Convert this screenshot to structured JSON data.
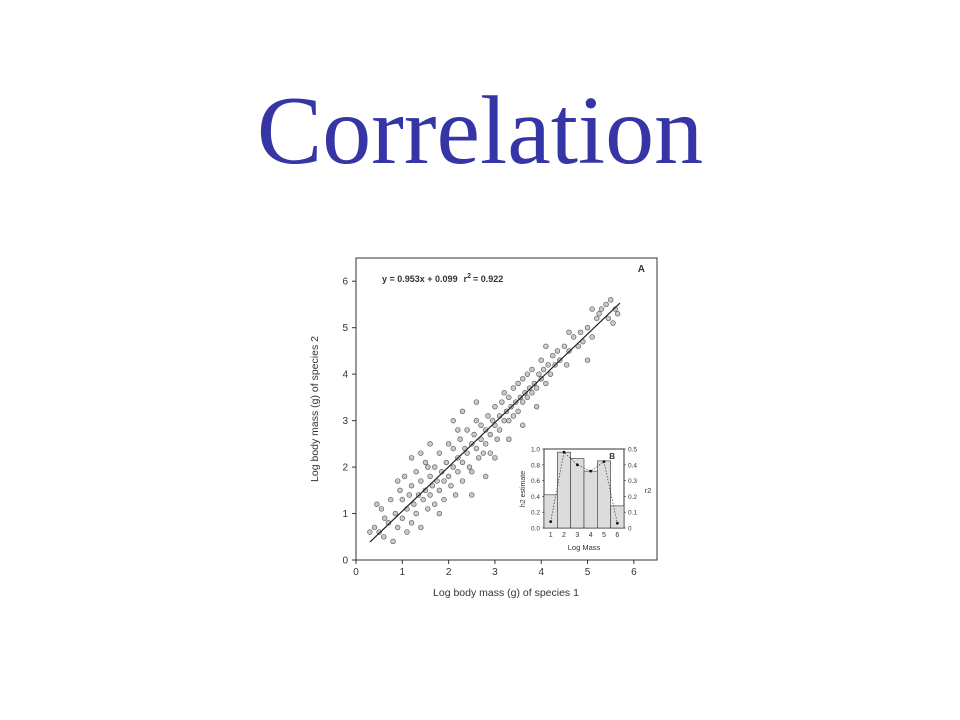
{
  "slide": {
    "title": "Correlation"
  },
  "colors": {
    "title": "#3535a6",
    "point_fill": "#c9c9c9",
    "point_stroke": "#555555",
    "axis": "#333333",
    "bar_fill": "#dcdcdc"
  },
  "chart_data": [
    {
      "panel_label": "A",
      "type": "scatter",
      "title": "",
      "xlabel": "Log body mass (g) of species 1",
      "ylabel": "Log body mass (g) of species 2",
      "xlim": [
        0,
        6.5
      ],
      "ylim": [
        0,
        6.5
      ],
      "xticks": [
        0,
        1,
        2,
        3,
        4,
        5,
        6
      ],
      "yticks": [
        0,
        1,
        2,
        3,
        4,
        5,
        6
      ],
      "equation": "y = 0.953x + 0.099",
      "r2_label": "r",
      "r2_superscript": "2",
      "r2_value": "= 0.922",
      "regression": {
        "slope": 0.953,
        "intercept": 0.099,
        "x_range": [
          0.3,
          5.7
        ]
      },
      "points": [
        [
          0.3,
          0.6
        ],
        [
          0.4,
          0.7
        ],
        [
          0.45,
          1.2
        ],
        [
          0.5,
          0.6
        ],
        [
          0.55,
          1.1
        ],
        [
          0.6,
          0.5
        ],
        [
          0.62,
          0.9
        ],
        [
          0.7,
          0.8
        ],
        [
          0.75,
          1.3
        ],
        [
          0.8,
          0.4
        ],
        [
          0.85,
          1.0
        ],
        [
          0.9,
          0.7
        ],
        [
          0.95,
          1.5
        ],
        [
          1.0,
          0.9
        ],
        [
          1.0,
          1.3
        ],
        [
          1.05,
          1.8
        ],
        [
          1.1,
          0.6
        ],
        [
          1.1,
          1.1
        ],
        [
          1.15,
          1.4
        ],
        [
          1.2,
          0.8
        ],
        [
          1.2,
          1.6
        ],
        [
          1.25,
          1.2
        ],
        [
          1.3,
          1.0
        ],
        [
          1.3,
          1.9
        ],
        [
          1.35,
          1.4
        ],
        [
          1.4,
          0.7
        ],
        [
          1.4,
          1.7
        ],
        [
          1.45,
          1.3
        ],
        [
          1.5,
          1.5
        ],
        [
          1.5,
          2.1
        ],
        [
          1.55,
          1.1
        ],
        [
          1.6,
          1.8
        ],
        [
          1.6,
          1.4
        ],
        [
          1.65,
          1.6
        ],
        [
          1.7,
          1.2
        ],
        [
          1.7,
          2.0
        ],
        [
          1.75,
          1.7
        ],
        [
          1.8,
          1.5
        ],
        [
          1.8,
          2.3
        ],
        [
          1.85,
          1.9
        ],
        [
          1.9,
          1.3
        ],
        [
          1.9,
          1.7
        ],
        [
          1.95,
          2.1
        ],
        [
          2.0,
          1.8
        ],
        [
          2.0,
          2.5
        ],
        [
          2.05,
          1.6
        ],
        [
          2.1,
          2.0
        ],
        [
          2.1,
          2.4
        ],
        [
          2.15,
          1.4
        ],
        [
          2.2,
          2.2
        ],
        [
          2.2,
          1.9
        ],
        [
          2.25,
          2.6
        ],
        [
          2.3,
          2.1
        ],
        [
          2.3,
          1.7
        ],
        [
          2.35,
          2.4
        ],
        [
          2.4,
          2.3
        ],
        [
          2.4,
          2.8
        ],
        [
          2.45,
          2.0
        ],
        [
          2.5,
          2.5
        ],
        [
          2.5,
          1.9
        ],
        [
          2.55,
          2.7
        ],
        [
          2.6,
          2.4
        ],
        [
          2.6,
          3.0
        ],
        [
          2.65,
          2.2
        ],
        [
          2.7,
          2.6
        ],
        [
          2.7,
          2.9
        ],
        [
          2.75,
          2.3
        ],
        [
          2.8,
          2.8
        ],
        [
          2.8,
          2.5
        ],
        [
          2.85,
          3.1
        ],
        [
          2.9,
          2.7
        ],
        [
          2.9,
          2.3
        ],
        [
          2.95,
          3.0
        ],
        [
          3.0,
          2.9
        ],
        [
          3.0,
          3.3
        ],
        [
          3.05,
          2.6
        ],
        [
          3.1,
          3.1
        ],
        [
          3.1,
          2.8
        ],
        [
          3.15,
          3.4
        ],
        [
          3.2,
          3.0
        ],
        [
          3.2,
          3.6
        ],
        [
          3.25,
          3.2
        ],
        [
          3.3,
          3.0
        ],
        [
          3.3,
          3.5
        ],
        [
          3.35,
          3.3
        ],
        [
          3.4,
          3.1
        ],
        [
          3.4,
          3.7
        ],
        [
          3.45,
          3.4
        ],
        [
          3.5,
          3.2
        ],
        [
          3.5,
          3.8
        ],
        [
          3.55,
          3.5
        ],
        [
          3.6,
          3.4
        ],
        [
          3.6,
          3.9
        ],
        [
          3.65,
          3.6
        ],
        [
          3.7,
          3.5
        ],
        [
          3.7,
          4.0
        ],
        [
          3.75,
          3.7
        ],
        [
          3.8,
          3.6
        ],
        [
          3.8,
          4.1
        ],
        [
          3.85,
          3.8
        ],
        [
          3.9,
          3.7
        ],
        [
          3.95,
          4.0
        ],
        [
          4.0,
          3.9
        ],
        [
          4.0,
          4.3
        ],
        [
          4.05,
          4.1
        ],
        [
          4.1,
          3.8
        ],
        [
          4.15,
          4.2
        ],
        [
          4.2,
          4.0
        ],
        [
          4.25,
          4.4
        ],
        [
          4.3,
          4.2
        ],
        [
          4.35,
          4.5
        ],
        [
          4.4,
          4.3
        ],
        [
          4.5,
          4.6
        ],
        [
          4.55,
          4.2
        ],
        [
          4.6,
          4.5
        ],
        [
          4.7,
          4.8
        ],
        [
          4.8,
          4.6
        ],
        [
          4.85,
          4.9
        ],
        [
          4.9,
          4.7
        ],
        [
          5.0,
          5.0
        ],
        [
          5.1,
          4.8
        ],
        [
          5.2,
          5.2
        ],
        [
          5.25,
          5.3
        ],
        [
          5.3,
          5.4
        ],
        [
          5.4,
          5.5
        ],
        [
          5.45,
          5.2
        ],
        [
          5.5,
          5.6
        ],
        [
          5.55,
          5.1
        ],
        [
          5.6,
          5.4
        ],
        [
          5.65,
          5.3
        ],
        [
          1.4,
          2.3
        ],
        [
          1.6,
          2.5
        ],
        [
          1.2,
          2.2
        ],
        [
          2.1,
          3.0
        ],
        [
          2.3,
          3.2
        ],
        [
          2.6,
          3.4
        ],
        [
          2.8,
          1.8
        ],
        [
          2.5,
          1.4
        ],
        [
          1.8,
          1.0
        ],
        [
          3.3,
          2.6
        ],
        [
          3.6,
          2.9
        ],
        [
          3.0,
          2.2
        ],
        [
          0.9,
          1.7
        ],
        [
          4.6,
          4.9
        ],
        [
          5.0,
          4.3
        ],
        [
          5.1,
          5.4
        ],
        [
          4.1,
          4.6
        ],
        [
          3.9,
          3.3
        ],
        [
          2.2,
          2.8
        ],
        [
          1.55,
          2.0
        ]
      ]
    },
    {
      "panel_label": "B",
      "type": "bar",
      "title": "",
      "xlabel": "Log Mass",
      "ylabel": "h2 estimate",
      "y2label": "r2",
      "categories": [
        "1",
        "2",
        "3",
        "4",
        "5",
        "6"
      ],
      "ylim": [
        0,
        1.0
      ],
      "yticks": [
        "0.0",
        "0.2",
        "0.4",
        "0.6",
        "0.8",
        "1.0"
      ],
      "y2lim": [
        0,
        0.5
      ],
      "y2ticks": [
        "0",
        "0.1",
        "0.2",
        "0.3",
        "0.4",
        "0.5"
      ],
      "series": [
        {
          "values": [
            0.42,
            0.96,
            0.88,
            0.72,
            0.85,
            0.28
          ]
        },
        {
          "values": [
            0.04,
            0.48,
            0.4,
            0.36,
            0.42,
            0.03
          ]
        }
      ]
    }
  ]
}
